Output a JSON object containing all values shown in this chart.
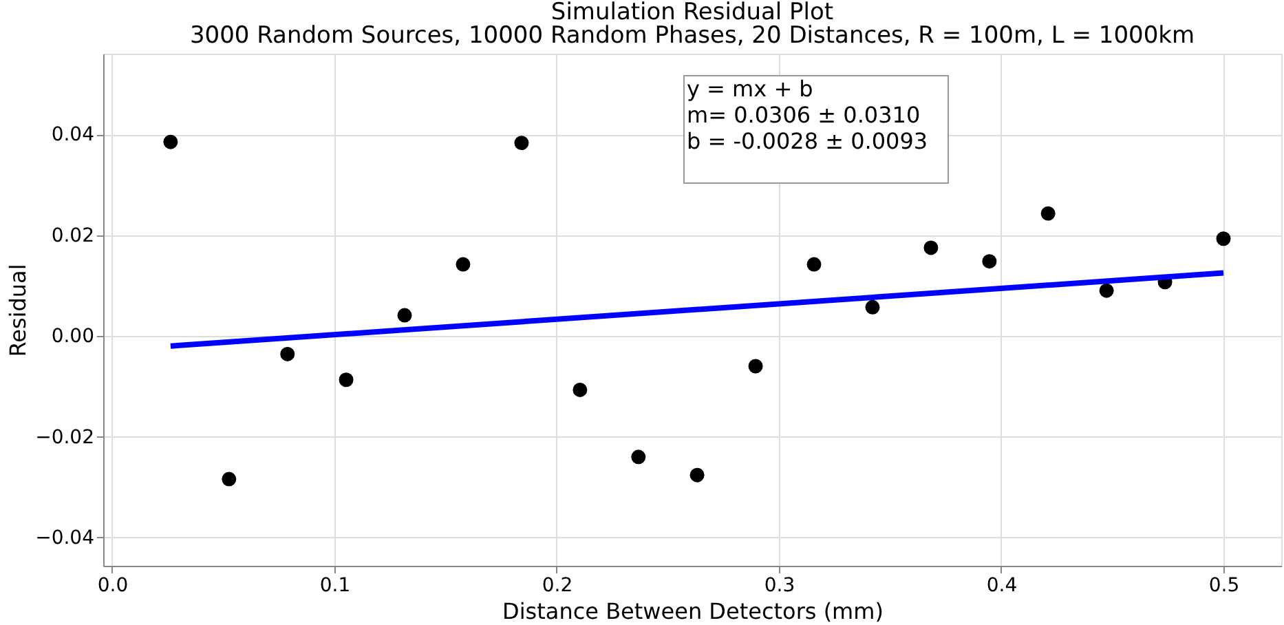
{
  "chart_data": {
    "type": "scatter",
    "title": "Simulation Residual Plot",
    "subtitle": "3000 Random Sources, 10000 Random Phases, 20 Distances, R = 100m, L = 1000km",
    "xlabel": "Distance Between Detectors (mm)",
    "ylabel": "Residual",
    "annotations": [
      "y = mx + b\nm= 0.0306 ± 0.0310\nb = -0.0028 ± 0.0093"
    ],
    "series": [
      {
        "color": "#000000",
        "marker": "circle",
        "x": [
          0.0263,
          0.0526,
          0.0789,
          0.1053,
          0.1316,
          0.1579,
          0.1842,
          0.2105,
          0.2368,
          0.2632,
          0.2895,
          0.3158,
          0.3421,
          0.3684,
          0.3947,
          0.4211,
          0.4474,
          0.4737,
          0.5
        ],
        "values": [
          0.0385,
          -0.0284,
          -0.0036,
          -0.0087,
          0.0041,
          0.0142,
          0.0383,
          -0.0107,
          -0.024,
          -0.0276,
          -0.006,
          0.0142,
          0.0057,
          0.0175,
          0.0148,
          0.0243,
          0.009,
          0.0107,
          0.0193
        ]
      },
      {
        "type": "line",
        "color": "#0000ff",
        "marker": "none",
        "x": [
          0.0263,
          0.5
        ],
        "values": [
          -0.002,
          0.0125
        ]
      }
    ],
    "xlim": [
      -0.004,
      0.526
    ],
    "ylim": [
      -0.0456,
      0.056
    ],
    "xticks": [
      {
        "value": 0,
        "label": "0.0"
      },
      0.1,
      0.2,
      0.3,
      0.4,
      0.5
    ],
    "yticks": [
      {
        "value": -0.04,
        "label": "−0.04"
      },
      {
        "value": -0.02,
        "label": "−0.02"
      },
      {
        "value": 0,
        "label": "0.00"
      },
      {
        "value": 0.02,
        "label": "0.02"
      },
      0.04
    ],
    "grid": true
  }
}
